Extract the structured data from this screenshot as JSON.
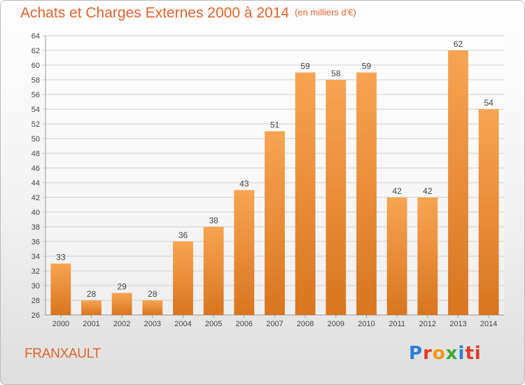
{
  "header": {
    "title": "Achats et Charges Externes 2000 à 2014",
    "subtitle": "(en milliers d'€)"
  },
  "footer": {
    "commune": "FRANXAULT",
    "brand_letters": [
      "P",
      "r",
      "o",
      "x",
      "i",
      "ti"
    ]
  },
  "colors": {
    "title": "#e2632d",
    "bar_top": "#f6a552",
    "bar_bottom": "#d9751f",
    "grid": "#cfcfcf"
  },
  "chart_data": {
    "type": "bar",
    "title": "Achats et Charges Externes 2000 à 2014",
    "subtitle": "(en milliers d'€)",
    "categories": [
      "2000",
      "2001",
      "2002",
      "2003",
      "2004",
      "2005",
      "2006",
      "2007",
      "2008",
      "2009",
      "2010",
      "2011",
      "2012",
      "2013",
      "2014"
    ],
    "values": [
      33,
      28,
      29,
      28,
      36,
      38,
      43,
      51,
      59,
      58,
      59,
      42,
      42,
      62,
      54
    ],
    "ylim": [
      26,
      64
    ],
    "yticks": [
      26,
      28,
      30,
      32,
      34,
      36,
      38,
      40,
      42,
      44,
      46,
      48,
      50,
      52,
      54,
      56,
      58,
      60,
      62,
      64
    ],
    "grid": true,
    "data_labels": true,
    "xlabel": "",
    "ylabel": ""
  }
}
